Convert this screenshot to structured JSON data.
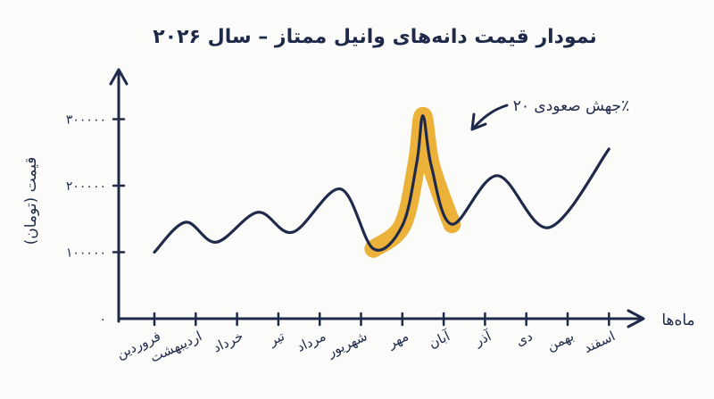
{
  "chart_data": {
    "type": "line",
    "title": "نمودار قیمت دانه‌های وانیل ممتاز – سال ۲۰۲۶",
    "xlabel": "ماه‌ها",
    "ylabel": "قیمت (تومان)",
    "y_ticks": [
      "۰",
      "۱۰۰۰۰۰",
      "۲۰۰۰۰۰",
      "۳۰۰۰۰۰"
    ],
    "ylim": [
      0,
      330000
    ],
    "categories": [
      "فروردین",
      "اردیبهشت",
      "خرداد",
      "تیر",
      "مرداد",
      "شهریور",
      "مهر",
      "آبان",
      "آذر",
      "دی",
      "بهمن",
      "اسفند"
    ],
    "x": [
      0,
      0.75,
      1.5,
      2.5,
      3.35,
      4.5,
      5.3,
      6,
      6.35,
      6.5,
      6.7,
      7.2,
      8.3,
      9.55,
      11
    ],
    "values": [
      100000,
      145000,
      115000,
      160000,
      130000,
      195000,
      105000,
      140000,
      235000,
      305000,
      230000,
      142000,
      215000,
      137000,
      255000
    ],
    "annotation": "جهش صعودی ۲۰٪",
    "highlight_color": "#e8a317",
    "line_color": "#1f2a4a"
  }
}
